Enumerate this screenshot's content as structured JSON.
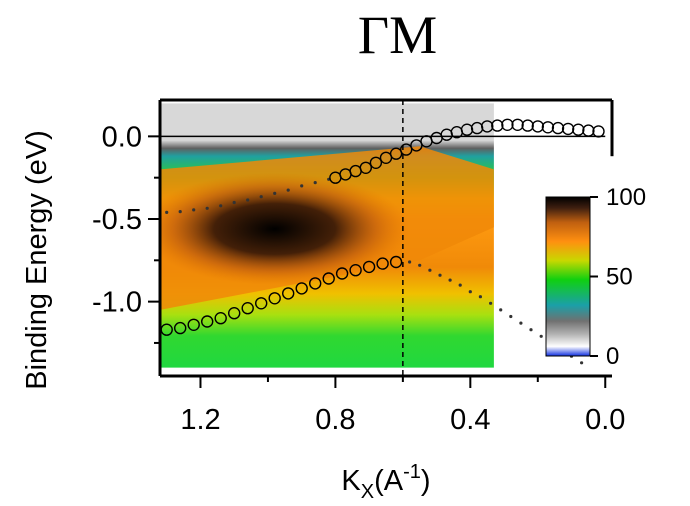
{
  "title": "ΓM",
  "chart_data": {
    "type": "heatmap",
    "title": "ΓM",
    "xlabel": {
      "main": "K",
      "sub": "X",
      "unit_open": "(A",
      "sup": "-1",
      "unit_close": ")"
    },
    "ylabel": "Binding Energy (eV)",
    "xlim": [
      1.32,
      -0.02
    ],
    "ylim": [
      -1.45,
      0.22
    ],
    "x_reversed": true,
    "x_ticks": [
      1.2,
      0.8,
      0.4,
      0.0
    ],
    "x_tick_labels": [
      "1.2",
      "0.8",
      "0.4",
      "0.0"
    ],
    "y_ticks": [
      0.0,
      -0.5,
      -1.0
    ],
    "y_tick_labels": [
      "0.0",
      "-0.5",
      "-1.0"
    ],
    "vertical_marker_x": 0.6,
    "heatmap_extent": {
      "x": [
        1.32,
        0.33
      ],
      "y": [
        -1.4,
        0.2
      ]
    },
    "colorbar": {
      "min": 0,
      "max": 100,
      "ticks": [
        100,
        50,
        0
      ],
      "tick_labels": [
        "100",
        "50",
        "0"
      ],
      "colors": [
        "#1030e0",
        "#ffffff",
        "#8a8a8a",
        "#1aa0a8",
        "#10d010",
        "#c8d800",
        "#ff9010",
        "#e07000",
        "#603018",
        "#000000"
      ]
    },
    "series": [
      {
        "marker": "large-open-circle",
        "points": [
          [
            1.3,
            -1.17
          ],
          [
            1.26,
            -1.16
          ],
          [
            1.22,
            -1.14
          ],
          [
            1.18,
            -1.12
          ],
          [
            1.14,
            -1.1
          ],
          [
            1.1,
            -1.07
          ],
          [
            1.06,
            -1.04
          ],
          [
            1.02,
            -1.01
          ],
          [
            0.98,
            -0.98
          ],
          [
            0.94,
            -0.95
          ],
          [
            0.9,
            -0.92
          ],
          [
            0.86,
            -0.89
          ],
          [
            0.82,
            -0.86
          ],
          [
            0.78,
            -0.83
          ],
          [
            0.74,
            -0.81
          ],
          [
            0.7,
            -0.79
          ],
          [
            0.66,
            -0.77
          ],
          [
            0.62,
            -0.76
          ]
        ]
      },
      {
        "marker": "small-dot",
        "points": [
          [
            0.58,
            -0.76
          ],
          [
            0.55,
            -0.78
          ],
          [
            0.52,
            -0.81
          ],
          [
            0.49,
            -0.84
          ],
          [
            0.46,
            -0.87
          ],
          [
            0.43,
            -0.9
          ],
          [
            0.4,
            -0.94
          ],
          [
            0.37,
            -0.97
          ],
          [
            0.34,
            -1.01
          ],
          [
            0.31,
            -1.05
          ],
          [
            0.28,
            -1.09
          ],
          [
            0.25,
            -1.13
          ],
          [
            0.22,
            -1.17
          ],
          [
            0.19,
            -1.21
          ],
          [
            0.16,
            -1.25
          ],
          [
            0.13,
            -1.29
          ],
          [
            0.1,
            -1.33
          ],
          [
            0.07,
            -1.37
          ]
        ]
      },
      {
        "marker": "small-dot",
        "points": [
          [
            1.3,
            -0.46
          ],
          [
            1.26,
            -0.455
          ],
          [
            1.22,
            -0.445
          ],
          [
            1.18,
            -0.435
          ],
          [
            1.14,
            -0.42
          ],
          [
            1.1,
            -0.4
          ],
          [
            1.06,
            -0.385
          ],
          [
            1.02,
            -0.365
          ],
          [
            0.98,
            -0.345
          ],
          [
            0.94,
            -0.325
          ],
          [
            0.9,
            -0.3
          ],
          [
            0.86,
            -0.28
          ],
          [
            0.82,
            -0.26
          ]
        ]
      },
      {
        "marker": "large-open-circle",
        "points": [
          [
            0.8,
            -0.25
          ],
          [
            0.77,
            -0.23
          ],
          [
            0.74,
            -0.21
          ],
          [
            0.71,
            -0.19
          ],
          [
            0.68,
            -0.16
          ],
          [
            0.65,
            -0.13
          ],
          [
            0.62,
            -0.105
          ],
          [
            0.59,
            -0.08
          ],
          [
            0.56,
            -0.055
          ],
          [
            0.53,
            -0.03
          ],
          [
            0.5,
            -0.01
          ],
          [
            0.47,
            0.01
          ],
          [
            0.44,
            0.025
          ],
          [
            0.41,
            0.04
          ],
          [
            0.38,
            0.05
          ],
          [
            0.35,
            0.06
          ],
          [
            0.32,
            0.065
          ],
          [
            0.29,
            0.07
          ],
          [
            0.26,
            0.07
          ],
          [
            0.23,
            0.065
          ],
          [
            0.2,
            0.06
          ],
          [
            0.17,
            0.055
          ],
          [
            0.14,
            0.05
          ],
          [
            0.11,
            0.045
          ],
          [
            0.08,
            0.04
          ],
          [
            0.05,
            0.035
          ],
          [
            0.02,
            0.03
          ]
        ]
      }
    ]
  }
}
